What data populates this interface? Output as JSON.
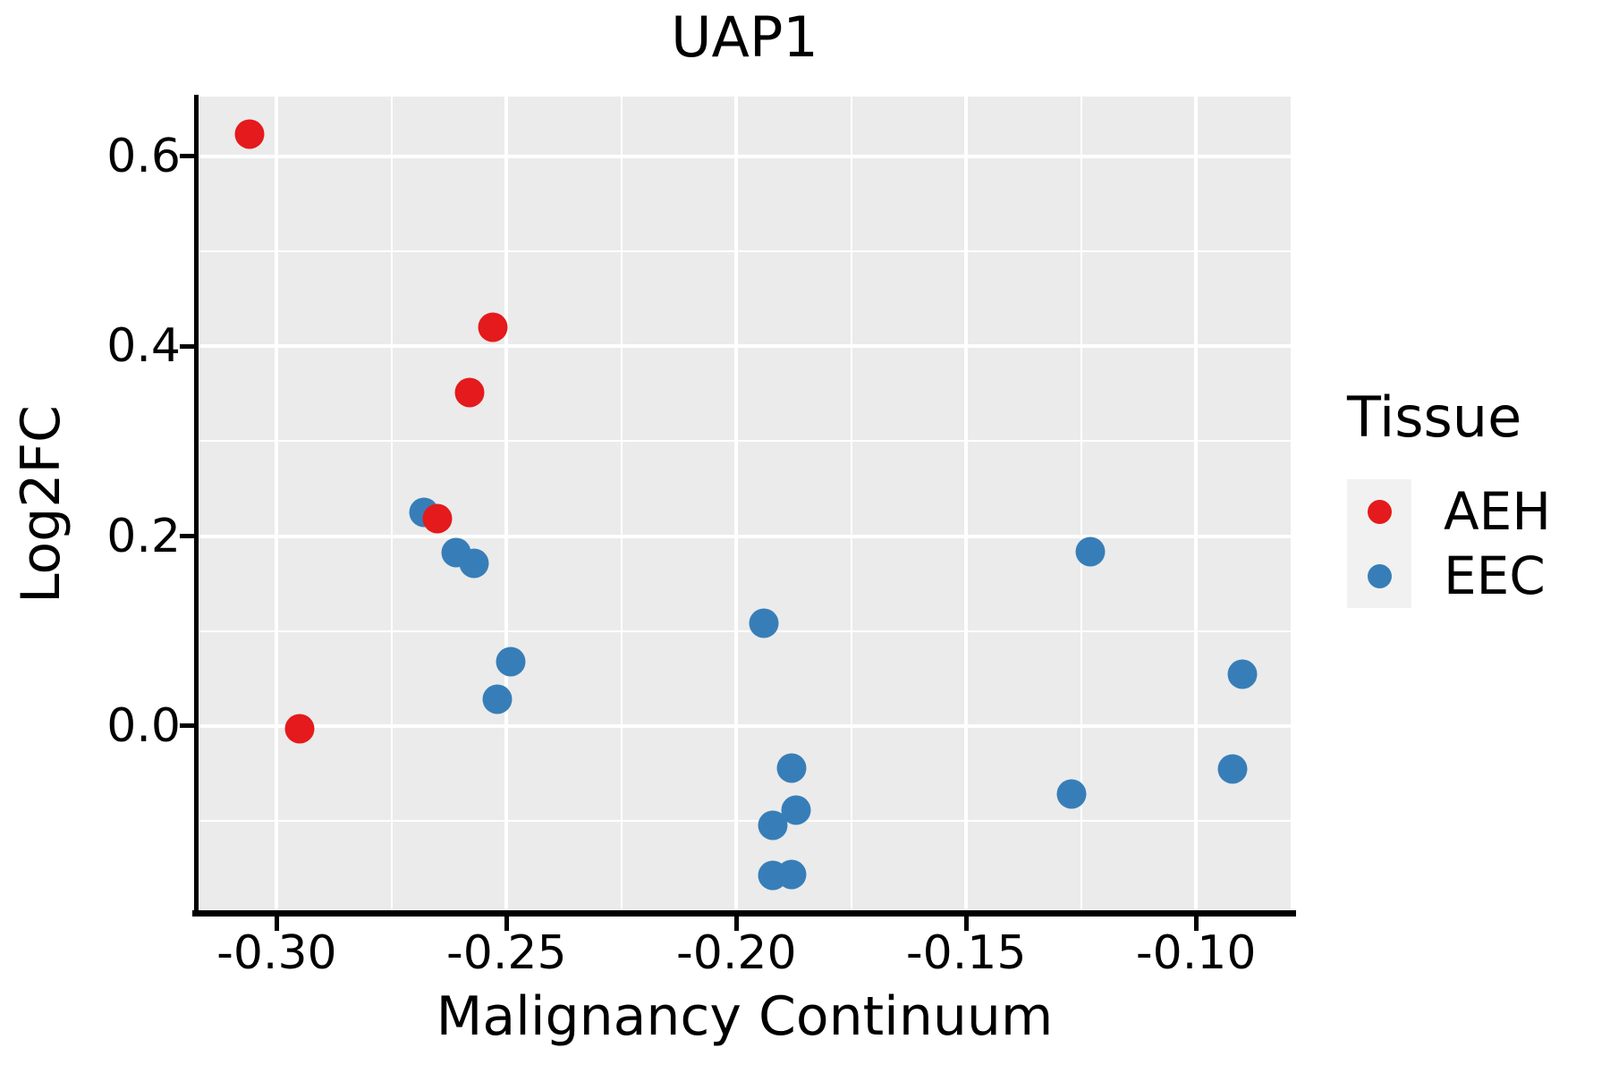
{
  "title": "UAP1",
  "colors": {
    "panel_bg": "#EBEBEB",
    "grid": "#FFFFFF",
    "axis": "#000000",
    "text": "#000000",
    "legend_key_bg": "#F1F1F1",
    "aeh": "#E41A1C",
    "eec": "#377EB8"
  },
  "axes": {
    "x": {
      "label": "Malignancy Continuum",
      "lim": [
        -0.317,
        -0.0794
      ],
      "tick_values": [
        -0.3,
        -0.25,
        -0.2,
        -0.15,
        -0.1
      ],
      "tick_labels": [
        "-0.30",
        "-0.25",
        "-0.20",
        "-0.15",
        "-0.10"
      ],
      "minor_values": [
        -0.275,
        -0.225,
        -0.175,
        -0.125
      ]
    },
    "y": {
      "label": "Log2FC",
      "lim": [
        -0.196,
        0.663
      ],
      "tick_values": [
        0.0,
        0.2,
        0.4,
        0.6
      ],
      "tick_labels": [
        "0.0",
        "0.2",
        "0.4",
        "0.6"
      ],
      "minor_values": [
        -0.1,
        0.1,
        0.3,
        0.5
      ]
    }
  },
  "legend": {
    "title": "Tissue",
    "entries": [
      {
        "label": "AEH",
        "color": "#E41A1C"
      },
      {
        "label": "EEC",
        "color": "#377EB8"
      }
    ]
  },
  "chart_data": {
    "type": "scatter",
    "title": "UAP1",
    "xlabel": "Malignancy Continuum",
    "ylabel": "Log2FC",
    "xlim": [
      -0.317,
      -0.0794
    ],
    "ylim": [
      -0.196,
      0.663
    ],
    "grid": "on",
    "legend_position": "right",
    "series": [
      {
        "name": "AEH",
        "color": "#E41A1C",
        "points": [
          [
            -0.306,
            0.623
          ],
          [
            -0.253,
            0.42
          ],
          [
            -0.258,
            0.351
          ],
          [
            -0.265,
            0.218
          ],
          [
            -0.295,
            -0.003
          ]
        ]
      },
      {
        "name": "EEC",
        "color": "#377EB8",
        "points": [
          [
            -0.268,
            0.225
          ],
          [
            -0.261,
            0.183
          ],
          [
            -0.257,
            0.171
          ],
          [
            -0.249,
            0.068
          ],
          [
            -0.252,
            0.028
          ],
          [
            -0.194,
            0.108
          ],
          [
            -0.188,
            -0.044
          ],
          [
            -0.187,
            -0.089
          ],
          [
            -0.192,
            -0.105
          ],
          [
            -0.192,
            -0.157
          ],
          [
            -0.188,
            -0.156
          ],
          [
            -0.123,
            0.184
          ],
          [
            -0.09,
            0.055
          ],
          [
            -0.127,
            -0.072
          ],
          [
            -0.092,
            -0.045
          ]
        ]
      }
    ]
  }
}
